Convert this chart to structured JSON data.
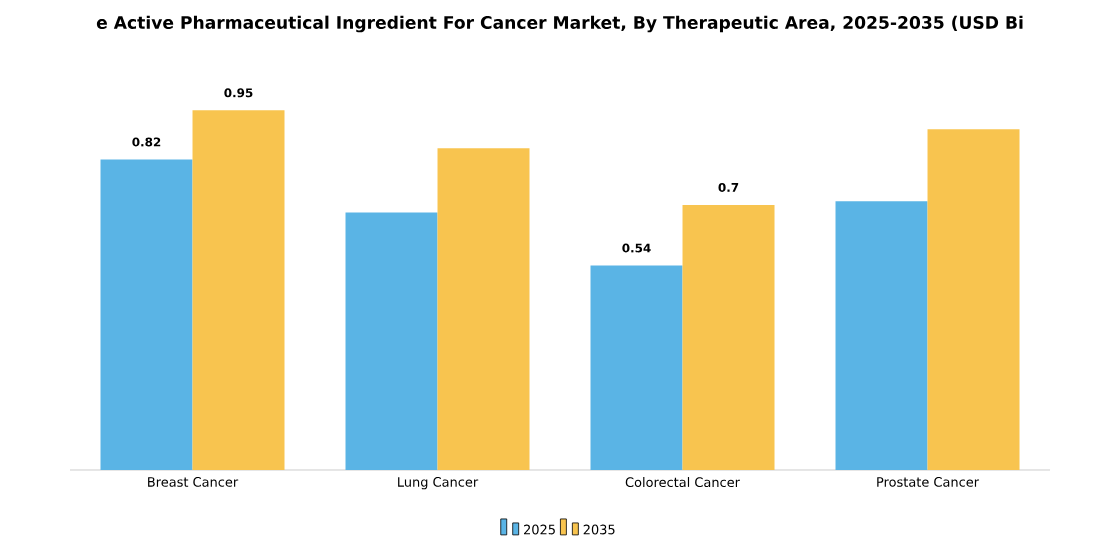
{
  "chart_data": {
    "type": "bar",
    "title": "e Active Pharmaceutical Ingredient For Cancer Market, By Therapeutic Area, 2025-2035 (USD Bi",
    "categories": [
      "Breast Cancer",
      "Lung Cancer",
      "Colorectal Cancer",
      "Prostate Cancer"
    ],
    "series": [
      {
        "name": "2025",
        "color": "#5ab4e5",
        "values": [
          0.82,
          0.68,
          0.54,
          0.71
        ],
        "value_labels": [
          "0.82",
          null,
          "0.54",
          null
        ]
      },
      {
        "name": "2035",
        "color": "#f8c44f",
        "values": [
          0.95,
          0.85,
          0.7,
          0.9
        ],
        "value_labels": [
          "0.95",
          null,
          "0.7",
          null
        ]
      }
    ],
    "legend": "bottom",
    "grid": false
  }
}
